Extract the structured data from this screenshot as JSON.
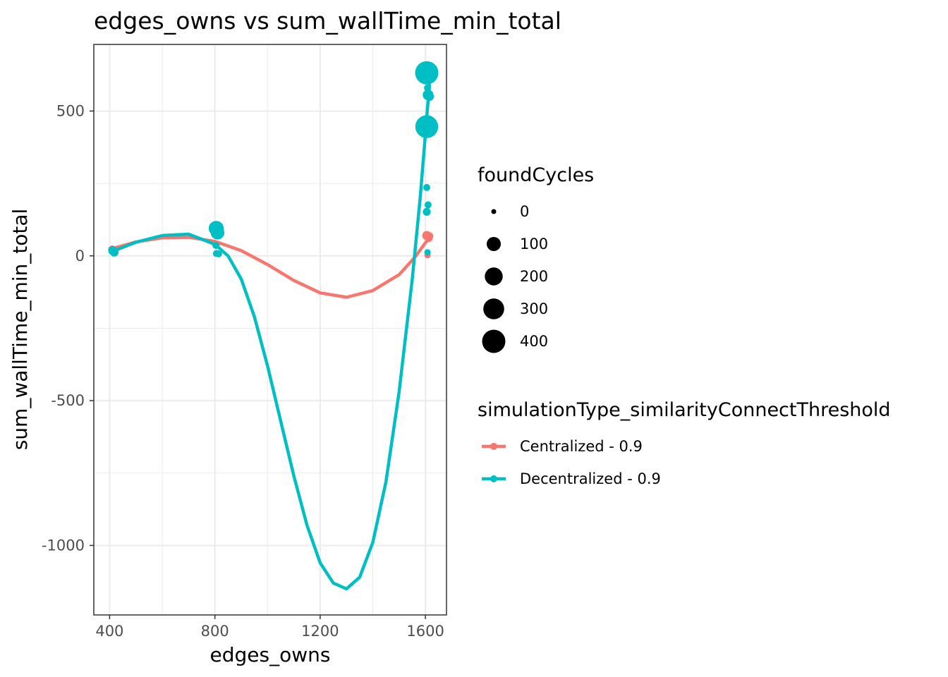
{
  "chart_data": {
    "type": "scatter",
    "title": "edges_owns  vs  sum_wallTime_min_total",
    "xlabel": "edges_owns",
    "ylabel": "sum_wallTime_min_total",
    "xlim": [
      340,
      1680
    ],
    "ylim": [
      -1240,
      730
    ],
    "x_ticks": [
      400,
      800,
      1200,
      1600
    ],
    "x_tick_labels": [
      "400",
      "800",
      "1200",
      "1600"
    ],
    "y_ticks": [
      -1000,
      -500,
      0,
      500
    ],
    "y_tick_labels": [
      "-1000",
      "-500",
      "0",
      "500"
    ],
    "grid": true,
    "legend_position": "right",
    "size_legend": {
      "title": "foundCycles",
      "values": [
        0,
        100,
        200,
        300,
        400
      ],
      "labels": [
        "0",
        "100",
        "200",
        "300",
        "400"
      ]
    },
    "color_legend": {
      "title": "simulationType_similarityConnectThreshold"
    },
    "series": [
      {
        "name": "Centralized - 0.9",
        "color": "#F8766D",
        "points": [
          {
            "x": 410,
            "y": 22,
            "size": 10
          },
          {
            "x": 415,
            "y": 18,
            "size": 10
          },
          {
            "x": 805,
            "y": 38,
            "size": 5
          },
          {
            "x": 812,
            "y": 8,
            "size": 3
          },
          {
            "x": 1605,
            "y": 70,
            "size": 20
          },
          {
            "x": 1612,
            "y": 62,
            "size": 15
          },
          {
            "x": 1615,
            "y": 68,
            "size": 10
          },
          {
            "x": 1608,
            "y": 2,
            "size": 2
          }
        ],
        "smooth": [
          {
            "x": 410,
            "y": 25
          },
          {
            "x": 500,
            "y": 48
          },
          {
            "x": 600,
            "y": 62
          },
          {
            "x": 700,
            "y": 64
          },
          {
            "x": 800,
            "y": 50
          },
          {
            "x": 900,
            "y": 18
          },
          {
            "x": 1000,
            "y": -30
          },
          {
            "x": 1100,
            "y": -85
          },
          {
            "x": 1200,
            "y": -128
          },
          {
            "x": 1300,
            "y": -143
          },
          {
            "x": 1400,
            "y": -120
          },
          {
            "x": 1500,
            "y": -65
          },
          {
            "x": 1560,
            "y": -5
          },
          {
            "x": 1600,
            "y": 45
          },
          {
            "x": 1615,
            "y": 60
          }
        ]
      },
      {
        "name": "Decentralized - 0.9",
        "color": "#00BFC4",
        "points": [
          {
            "x": 412,
            "y": 18,
            "size": 20
          },
          {
            "x": 418,
            "y": 12,
            "size": 15
          },
          {
            "x": 805,
            "y": 95,
            "size": 120
          },
          {
            "x": 810,
            "y": 80,
            "size": 90
          },
          {
            "x": 804,
            "y": 36,
            "size": 5
          },
          {
            "x": 806,
            "y": 8,
            "size": 5
          },
          {
            "x": 815,
            "y": 6,
            "size": 3
          },
          {
            "x": 1605,
            "y": 632,
            "size": 400
          },
          {
            "x": 1605,
            "y": 446,
            "size": 380
          },
          {
            "x": 1608,
            "y": 580,
            "size": 5
          },
          {
            "x": 1610,
            "y": 556,
            "size": 40
          },
          {
            "x": 1615,
            "y": 550,
            "size": 20
          },
          {
            "x": 1605,
            "y": 236,
            "size": 5
          },
          {
            "x": 1610,
            "y": 176,
            "size": 5
          },
          {
            "x": 1605,
            "y": 152,
            "size": 10
          },
          {
            "x": 1608,
            "y": 12,
            "size": 3
          }
        ],
        "smooth": [
          {
            "x": 410,
            "y": 15
          },
          {
            "x": 500,
            "y": 47
          },
          {
            "x": 600,
            "y": 70
          },
          {
            "x": 700,
            "y": 75
          },
          {
            "x": 800,
            "y": 40
          },
          {
            "x": 850,
            "y": 0
          },
          {
            "x": 900,
            "y": -80
          },
          {
            "x": 950,
            "y": -210
          },
          {
            "x": 1000,
            "y": -380
          },
          {
            "x": 1050,
            "y": -570
          },
          {
            "x": 1100,
            "y": -760
          },
          {
            "x": 1150,
            "y": -930
          },
          {
            "x": 1200,
            "y": -1060
          },
          {
            "x": 1250,
            "y": -1130
          },
          {
            "x": 1300,
            "y": -1150
          },
          {
            "x": 1350,
            "y": -1110
          },
          {
            "x": 1400,
            "y": -990
          },
          {
            "x": 1450,
            "y": -780
          },
          {
            "x": 1500,
            "y": -470
          },
          {
            "x": 1550,
            "y": -80
          },
          {
            "x": 1580,
            "y": 200
          },
          {
            "x": 1600,
            "y": 420
          },
          {
            "x": 1615,
            "y": 590
          }
        ]
      }
    ]
  }
}
